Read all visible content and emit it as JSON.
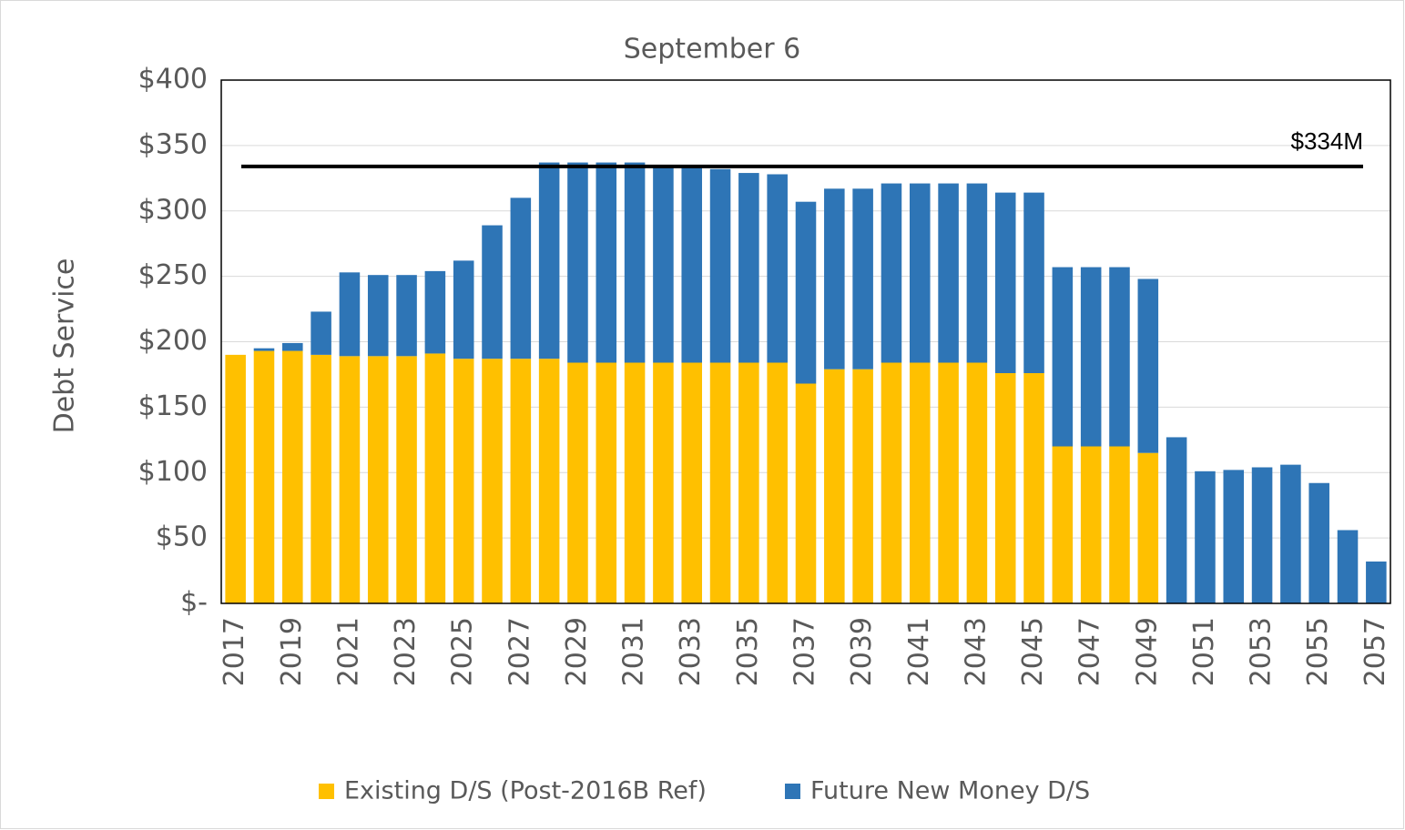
{
  "chart_data": {
    "type": "stacked_bar",
    "title": "September 6",
    "y_label": "Debt Service",
    "categories": [
      "2017",
      null,
      "2019",
      null,
      "2021",
      null,
      "2023",
      null,
      "2025",
      null,
      "2027",
      null,
      "2029",
      null,
      "2031",
      null,
      "2033",
      null,
      "2035",
      null,
      "2037",
      null,
      "2039",
      null,
      "2041",
      null,
      "2043",
      null,
      "2045",
      null,
      "2047",
      null,
      "2049",
      null,
      "2051",
      null,
      "2053",
      null,
      "2055",
      null,
      "2057"
    ],
    "series": [
      {
        "name": "Existing D/S (Post-2016B Ref)",
        "color": "#ffc000",
        "values": [
          190,
          193,
          193,
          190,
          189,
          189,
          189,
          191,
          187,
          187,
          187,
          187,
          184,
          184,
          184,
          184,
          184,
          184,
          184,
          184,
          168,
          179,
          179,
          184,
          184,
          184,
          184,
          176,
          176,
          120,
          120,
          120,
          115,
          0,
          0,
          0,
          0,
          0,
          0,
          0,
          0
        ]
      },
      {
        "name": "Future New Money D/S",
        "color": "#2e75b6",
        "values": [
          0,
          2,
          6,
          33,
          64,
          62,
          62,
          63,
          75,
          102,
          123,
          150,
          153,
          153,
          153,
          151,
          150,
          148,
          145,
          144,
          139,
          138,
          138,
          137,
          137,
          137,
          137,
          138,
          138,
          137,
          137,
          137,
          133,
          127,
          101,
          102,
          104,
          106,
          92,
          56,
          32
        ]
      }
    ],
    "ylim": [
      0,
      400
    ],
    "yticks": [
      {
        "value": 0,
        "label": "$-"
      },
      {
        "value": 50,
        "label": "$50"
      },
      {
        "value": 100,
        "label": "$100"
      },
      {
        "value": 150,
        "label": "$150"
      },
      {
        "value": 200,
        "label": "$200"
      },
      {
        "value": 250,
        "label": "$250"
      },
      {
        "value": 300,
        "label": "$300"
      },
      {
        "value": 350,
        "label": "$350"
      },
      {
        "value": 400,
        "label": "$400"
      }
    ],
    "grid": true,
    "reference_line": {
      "value": 334,
      "label": "$334M",
      "color": "#000000"
    },
    "legend": "bottom"
  }
}
